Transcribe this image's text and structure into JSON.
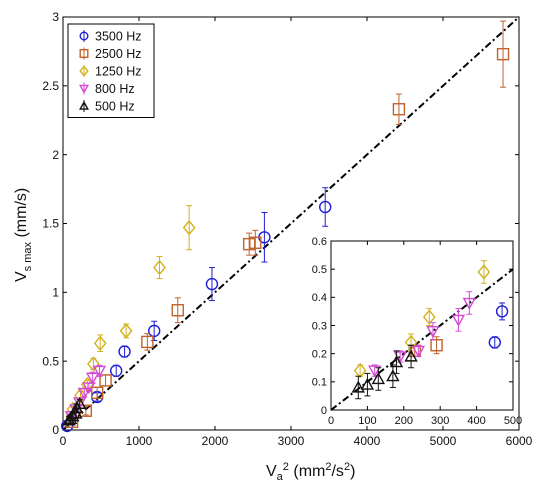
{
  "chart_data": [
    {
      "type": "scatter",
      "role": "main",
      "xlabel": "V_a^2 (mm^2/s^2)",
      "ylabel": "V_s max (mm/s)",
      "xlim": [
        0,
        6000
      ],
      "ylim": [
        0,
        3
      ],
      "x_ticks": [
        "0",
        "1000",
        "2000",
        "3000",
        "4000",
        "5000",
        "6000"
      ],
      "y_ticks": [
        "0",
        "0.5",
        "1",
        "1.5",
        "2",
        "2.5",
        "3"
      ],
      "grid": false,
      "legend_position": "top-left",
      "reference_line": {
        "style": "dash-dot",
        "color": "#000000",
        "points": [
          [
            0,
            0
          ],
          [
            6000,
            3
          ]
        ]
      },
      "series": [
        {
          "name": "3500 Hz",
          "marker": "circle",
          "color": "#1f1fd6",
          "points": [
            [
              55,
              0.03,
              0.01
            ],
            [
              450,
              0.24,
              0.03
            ],
            [
              700,
              0.43,
              0.04
            ],
            [
              810,
              0.57,
              0.04
            ],
            [
              1200,
              0.72,
              0.07
            ],
            [
              1960,
              1.06,
              0.12
            ],
            [
              2650,
              1.4,
              0.18
            ],
            [
              3450,
              1.62,
              0.14
            ]
          ]
        },
        {
          "name": "2500 Hz",
          "marker": "square",
          "color": "#c0622a",
          "points": [
            [
              120,
              0.06,
              0.02
            ],
            [
              300,
              0.14,
              0.03
            ],
            [
              450,
              0.27,
              0.04
            ],
            [
              560,
              0.36,
              0.04
            ],
            [
              1110,
              0.64,
              0.06
            ],
            [
              1510,
              0.87,
              0.09
            ],
            [
              2450,
              1.35,
              0.08
            ],
            [
              2530,
              1.36,
              0.09
            ],
            [
              4420,
              2.33,
              0.11
            ],
            [
              5790,
              2.73,
              0.24
            ]
          ]
        },
        {
          "name": "1250 Hz",
          "marker": "diamond",
          "color": "#d4b21a",
          "points": [
            [
              130,
              0.15,
              0.02
            ],
            [
              230,
              0.25,
              0.03
            ],
            [
              320,
              0.33,
              0.03
            ],
            [
              400,
              0.48,
              0.04
            ],
            [
              490,
              0.63,
              0.06
            ],
            [
              830,
              0.72,
              0.05
            ],
            [
              1270,
              1.18,
              0.08
            ],
            [
              1660,
              1.47,
              0.16
            ]
          ]
        },
        {
          "name": "800 Hz",
          "marker": "triangle-down",
          "color": "#d44ad4",
          "points": [
            [
              110,
              0.1,
              0.02
            ],
            [
              170,
              0.15,
              0.02
            ],
            [
              220,
              0.2,
              0.02
            ],
            [
              280,
              0.27,
              0.03
            ],
            [
              340,
              0.31,
              0.03
            ],
            [
              390,
              0.38,
              0.04
            ],
            [
              480,
              0.43,
              0.04
            ]
          ]
        },
        {
          "name": "500 Hz",
          "marker": "triangle-up",
          "color": "#111111",
          "points": [
            [
              80,
              0.07,
              0.03
            ],
            [
              100,
              0.08,
              0.03
            ],
            [
              130,
              0.1,
              0.03
            ],
            [
              170,
              0.12,
              0.03
            ],
            [
              180,
              0.16,
              0.03
            ],
            [
              220,
              0.19,
              0.03
            ]
          ]
        }
      ]
    },
    {
      "type": "scatter",
      "role": "inset",
      "xlim": [
        0,
        500
      ],
      "ylim": [
        0,
        0.6
      ],
      "x_ticks": [
        "0",
        "100",
        "200",
        "300",
        "400",
        "500"
      ],
      "y_ticks": [
        "0",
        "0.1",
        "0.2",
        "0.3",
        "0.4",
        "0.5",
        "0.6"
      ],
      "reference_line": {
        "style": "dash-dot",
        "color": "#000000",
        "points": [
          [
            0,
            0
          ],
          [
            500,
            0.5
          ]
        ]
      },
      "series": [
        {
          "name": "3500 Hz",
          "marker": "circle",
          "color": "#1f1fd6",
          "points": [
            [
              450,
              0.24,
              0.02
            ],
            [
              470,
              0.35,
              0.03
            ]
          ]
        },
        {
          "name": "2500 Hz",
          "marker": "square",
          "color": "#c0622a",
          "points": [
            [
              230,
              0.21,
              0.02
            ],
            [
              290,
              0.23,
              0.03
            ]
          ]
        },
        {
          "name": "1250 Hz",
          "marker": "diamond",
          "color": "#d4b21a",
          "points": [
            [
              80,
              0.14,
              0.02
            ],
            [
              220,
              0.24,
              0.03
            ],
            [
              270,
              0.33,
              0.03
            ],
            [
              420,
              0.49,
              0.04
            ]
          ]
        },
        {
          "name": "800 Hz",
          "marker": "triangle-down",
          "color": "#d44ad4",
          "points": [
            [
              120,
              0.14,
              0.02
            ],
            [
              190,
              0.19,
              0.02
            ],
            [
              240,
              0.21,
              0.02
            ],
            [
              280,
              0.28,
              0.03
            ],
            [
              350,
              0.32,
              0.04
            ],
            [
              380,
              0.38,
              0.04
            ]
          ]
        },
        {
          "name": "500 Hz",
          "marker": "triangle-up",
          "color": "#111111",
          "points": [
            [
              75,
              0.08,
              0.04
            ],
            [
              100,
              0.09,
              0.04
            ],
            [
              130,
              0.11,
              0.04
            ],
            [
              170,
              0.12,
              0.04
            ],
            [
              180,
              0.17,
              0.04
            ],
            [
              220,
              0.19,
              0.04
            ]
          ]
        }
      ]
    }
  ]
}
